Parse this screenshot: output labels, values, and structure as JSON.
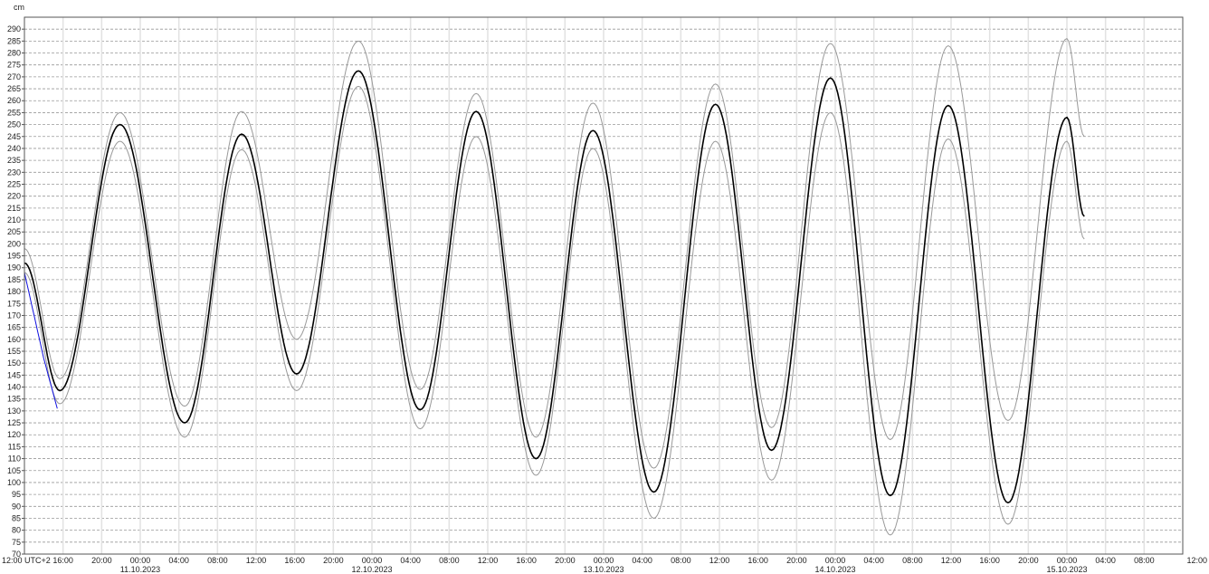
{
  "chart_data": {
    "type": "line",
    "ylabel": "cm",
    "ylim": [
      70,
      295
    ],
    "ytick_step": 5,
    "xlim": [
      "2023-10-10T12:00",
      "2023-10-15T12:00"
    ],
    "x_tick_labels": [
      "12:00 UTC+2",
      "16:00",
      "20:00",
      "00:00",
      "04:00",
      "08:00",
      "12:00",
      "16:00",
      "20:00",
      "00:00",
      "04:00",
      "08:00",
      "12:00",
      "16:00",
      "20:00",
      "00:00",
      "04:00",
      "08:00",
      "12:00",
      "16:00",
      "20:00",
      "00:00",
      "04:00",
      "08:00",
      "12:00",
      "16:00",
      "20:00",
      "00:00",
      "04:00",
      "08:00",
      "12:00"
    ],
    "x_date_labels": [
      "11.10.2023",
      "12.10.2023",
      "13.10.2023",
      "14.10.2023",
      "15.10.2023"
    ],
    "grid": true,
    "series": [
      {
        "color": "#999999",
        "points": [
          [
            "2023-10-10T12:00",
            198
          ],
          [
            "2023-10-10T15:40",
            143.5
          ],
          [
            "2023-10-10T21:54",
            255
          ],
          [
            "2023-10-11T04:36",
            132
          ],
          [
            "2023-10-11T10:30",
            255.5
          ],
          [
            "2023-10-11T16:12",
            160
          ],
          [
            "2023-10-11T22:36",
            285
          ],
          [
            "2023-10-12T05:00",
            139
          ],
          [
            "2023-10-12T10:48",
            263
          ],
          [
            "2023-10-12T17:00",
            119
          ],
          [
            "2023-10-12T22:54",
            259
          ],
          [
            "2023-10-13T05:12",
            106
          ],
          [
            "2023-10-13T11:36",
            267
          ],
          [
            "2023-10-13T17:24",
            123
          ],
          [
            "2023-10-13T23:30",
            284
          ],
          [
            "2023-10-14T05:42",
            118
          ],
          [
            "2023-10-14T11:42",
            283
          ],
          [
            "2023-10-14T17:54",
            126
          ],
          [
            "2023-10-15T00:00",
            286
          ],
          [
            "2023-10-15T01:48",
            245
          ]
        ]
      },
      {
        "color": "#999999",
        "points": [
          [
            "2023-10-10T12:00",
            188
          ],
          [
            "2023-10-10T15:40",
            133
          ],
          [
            "2023-10-10T21:54",
            243
          ],
          [
            "2023-10-11T04:36",
            119
          ],
          [
            "2023-10-11T10:30",
            239.5
          ],
          [
            "2023-10-11T16:12",
            138.5
          ],
          [
            "2023-10-11T22:36",
            266
          ],
          [
            "2023-10-12T05:00",
            122.5
          ],
          [
            "2023-10-12T10:48",
            245
          ],
          [
            "2023-10-12T17:00",
            103
          ],
          [
            "2023-10-12T22:54",
            240
          ],
          [
            "2023-10-13T05:12",
            85
          ],
          [
            "2023-10-13T11:36",
            243
          ],
          [
            "2023-10-13T17:24",
            101
          ],
          [
            "2023-10-13T23:30",
            255
          ],
          [
            "2023-10-14T05:42",
            78
          ],
          [
            "2023-10-14T11:42",
            244
          ],
          [
            "2023-10-14T17:54",
            82.5
          ],
          [
            "2023-10-15T00:00",
            243
          ],
          [
            "2023-10-15T01:48",
            202
          ]
        ]
      },
      {
        "color": "#000000",
        "points": [
          [
            "2023-10-10T12:00",
            192
          ],
          [
            "2023-10-10T15:40",
            138.5
          ],
          [
            "2023-10-10T21:54",
            250
          ],
          [
            "2023-10-11T04:36",
            125
          ],
          [
            "2023-10-11T10:30",
            246
          ],
          [
            "2023-10-11T16:12",
            145.5
          ],
          [
            "2023-10-11T22:36",
            272.5
          ],
          [
            "2023-10-12T05:00",
            130.5
          ],
          [
            "2023-10-12T10:48",
            255.5
          ],
          [
            "2023-10-12T17:00",
            110
          ],
          [
            "2023-10-12T22:54",
            247.5
          ],
          [
            "2023-10-13T05:12",
            96
          ],
          [
            "2023-10-13T11:36",
            258.5
          ],
          [
            "2023-10-13T17:24",
            113.5
          ],
          [
            "2023-10-13T23:30",
            269.5
          ],
          [
            "2023-10-14T05:42",
            94.5
          ],
          [
            "2023-10-14T11:42",
            258
          ],
          [
            "2023-10-14T17:54",
            91.5
          ],
          [
            "2023-10-15T00:00",
            253
          ],
          [
            "2023-10-15T01:48",
            211.5
          ]
        ]
      },
      {
        "color": "#1010e0",
        "points": [
          [
            "2023-10-10T12:00",
            188
          ],
          [
            "2023-10-10T13:00",
            170
          ],
          [
            "2023-10-10T14:00",
            152
          ],
          [
            "2023-10-10T15:00",
            137
          ],
          [
            "2023-10-10T15:24",
            131
          ]
        ]
      }
    ]
  }
}
